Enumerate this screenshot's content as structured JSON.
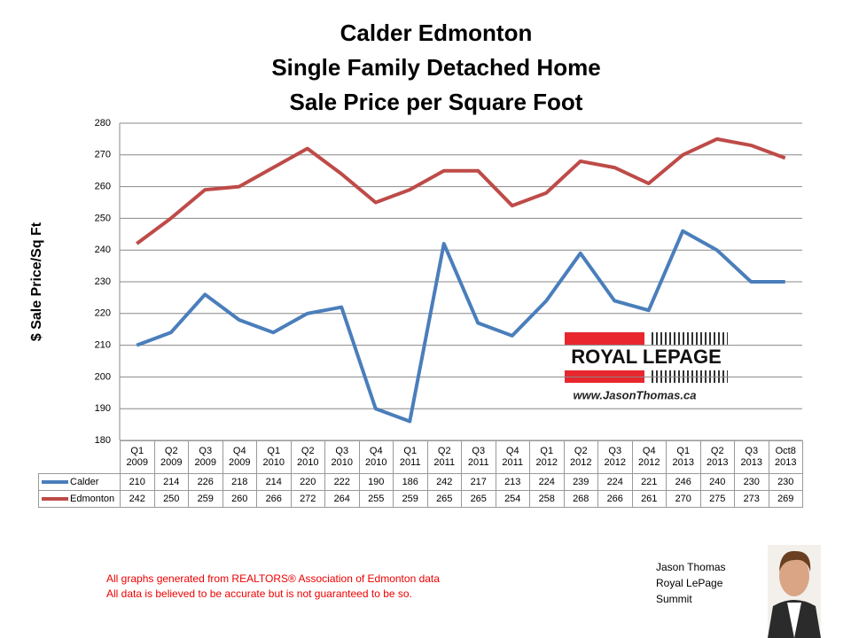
{
  "chart_data": {
    "type": "line",
    "title": [
      "Calder Edmonton",
      "Single Family Detached Home",
      "Sale Price per Square Foot"
    ],
    "y_label": "$ Sale Price/Sq Ft",
    "categories": [
      "Q1 2009",
      "Q2 2009",
      "Q3 2009",
      "Q4 2009",
      "Q1 2010",
      "Q2 2010",
      "Q3 2010",
      "Q4 2010",
      "Q1 2011",
      "Q2 2011",
      "Q3 2011",
      "Q4 2011",
      "Q1 2012",
      "Q2 2012",
      "Q3 2012",
      "Q4 2012",
      "Q1 2013",
      "Q2 2013",
      "Q3 2013",
      "Oct8 2013"
    ],
    "series": [
      {
        "name": "Calder",
        "color": "#4a7ebb",
        "values": [
          210,
          214,
          226,
          218,
          214,
          220,
          222,
          190,
          186,
          242,
          217,
          213,
          224,
          239,
          224,
          221,
          246,
          240,
          230,
          230
        ]
      },
      {
        "name": "Edmonton",
        "color": "#be4b48",
        "values": [
          242,
          250,
          259,
          260,
          266,
          272,
          264,
          255,
          259,
          265,
          265,
          254,
          258,
          268,
          266,
          261,
          270,
          275,
          273,
          269
        ]
      }
    ],
    "ylim": [
      180,
      280
    ],
    "yticks": [
      180,
      190,
      200,
      210,
      220,
      230,
      240,
      250,
      260,
      270,
      280
    ],
    "grid": true
  },
  "logo": {
    "brand": "ROYAL LEPAGE",
    "url": "www.JasonThomas.ca"
  },
  "footer": {
    "notes": [
      "All graphs generated from REALTORS® Association of Edmonton data",
      "All data is believed to be accurate but is not guaranteed to be so."
    ],
    "agent": [
      "Jason Thomas",
      "Royal LePage",
      "Summit"
    ]
  }
}
